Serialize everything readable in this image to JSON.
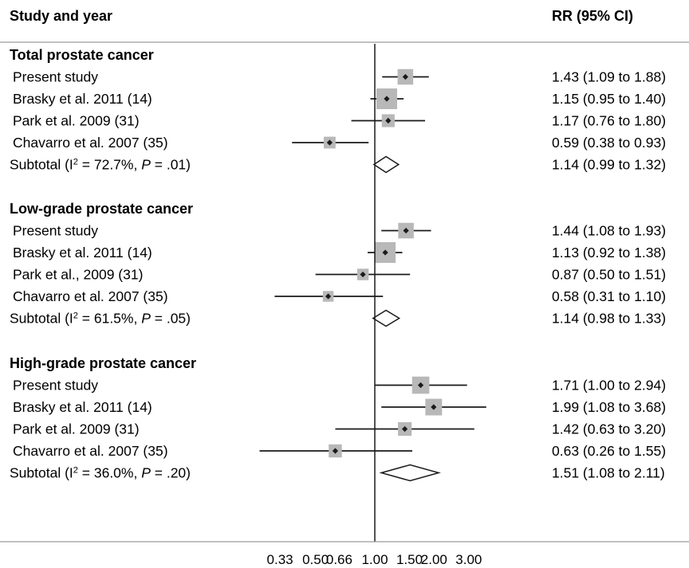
{
  "chart_data": {
    "type": "forest",
    "headers": {
      "study": "Study and year",
      "estimate": "RR (95% CI)"
    },
    "x_scale": "log",
    "xlim": [
      0.2,
      4.0
    ],
    "reference_line": 1.0,
    "x_ticks": [
      {
        "value": 0.33,
        "label": "0.33"
      },
      {
        "value": 0.5,
        "label": "0.50"
      },
      {
        "value": 0.66,
        "label": "0.66"
      },
      {
        "value": 1.0,
        "label": "1.00"
      },
      {
        "value": 1.5,
        "label": "1.50"
      },
      {
        "value": 2.0,
        "label": "2.00"
      },
      {
        "value": 3.0,
        "label": "3.00"
      }
    ],
    "groups": [
      {
        "title": "Total prostate cancer",
        "studies": [
          {
            "label": "Present study",
            "rr": 1.43,
            "lo": 1.09,
            "hi": 1.88,
            "weight": 0.62,
            "text": "1.43 (1.09 to 1.88)"
          },
          {
            "label": "Brasky et al. 2011 (14)",
            "rr": 1.15,
            "lo": 0.95,
            "hi": 1.4,
            "weight": 1.0,
            "text": "1.15 (0.95 to 1.40)"
          },
          {
            "label": "Park et al. 2009 (31)",
            "rr": 1.17,
            "lo": 0.76,
            "hi": 1.8,
            "weight": 0.42,
            "text": "1.17 (0.76 to 1.80)"
          },
          {
            "label": "Chavarro et al. 2007 (35)",
            "rr": 0.59,
            "lo": 0.38,
            "hi": 0.93,
            "weight": 0.34,
            "text": "0.59 (0.38 to 0.93)"
          }
        ],
        "subtotal": {
          "label": "Subtotal",
          "i2": "72.7%",
          "p": ".01",
          "rr": 1.14,
          "lo": 0.99,
          "hi": 1.32,
          "text": "1.14 (0.99 to 1.32)"
        }
      },
      {
        "title": "Low-grade prostate cancer",
        "studies": [
          {
            "label": "Present study",
            "rr": 1.44,
            "lo": 1.08,
            "hi": 1.93,
            "weight": 0.62,
            "text": "1.44 (1.08 to 1.93)"
          },
          {
            "label": "Brasky et al. 2011 (14)",
            "rr": 1.13,
            "lo": 0.92,
            "hi": 1.38,
            "weight": 1.0,
            "text": "1.13 (0.92 to 1.38)"
          },
          {
            "label": "Park et al., 2009 (31)",
            "rr": 0.87,
            "lo": 0.5,
            "hi": 1.51,
            "weight": 0.32,
            "text": "0.87 (0.50 to 1.51)"
          },
          {
            "label": "Chavarro et al. 2007 (35)",
            "rr": 0.58,
            "lo": 0.31,
            "hi": 1.1,
            "weight": 0.26,
            "text": "0.58 (0.31 to 1.10)"
          }
        ],
        "subtotal": {
          "label": "Subtotal",
          "i2": "61.5%",
          "p": ".05",
          "rr": 1.14,
          "lo": 0.98,
          "hi": 1.33,
          "text": "1.14 (0.98 to 1.33)"
        }
      },
      {
        "title": "High-grade prostate cancer",
        "studies": [
          {
            "label": "Present study",
            "rr": 1.71,
            "lo": 1.0,
            "hi": 2.94,
            "weight": 0.74,
            "text": "1.71 (1.00 to 2.94)"
          },
          {
            "label": "Brasky et al. 2011 (14)",
            "rr": 1.99,
            "lo": 1.08,
            "hi": 3.68,
            "weight": 0.7,
            "text": "1.99 (1.08 to 3.68)"
          },
          {
            "label": "Park et al. 2009 (31)",
            "rr": 1.42,
            "lo": 0.63,
            "hi": 3.2,
            "weight": 0.48,
            "text": "1.42 (0.63 to 3.20)"
          },
          {
            "label": "Chavarro et al. 2007 (35)",
            "rr": 0.63,
            "lo": 0.26,
            "hi": 1.55,
            "weight": 0.44,
            "text": "0.63 (0.26 to 1.55)"
          }
        ],
        "subtotal": {
          "label": "Subtotal",
          "i2": "36.0%",
          "p": ".20",
          "rr": 1.51,
          "lo": 1.08,
          "hi": 2.11,
          "text": "1.51 (1.08 to 2.11)"
        }
      }
    ],
    "colors": {
      "box": "#b8b8b8",
      "line": "#1a1a1a",
      "separator": "#9a9a9a"
    }
  }
}
